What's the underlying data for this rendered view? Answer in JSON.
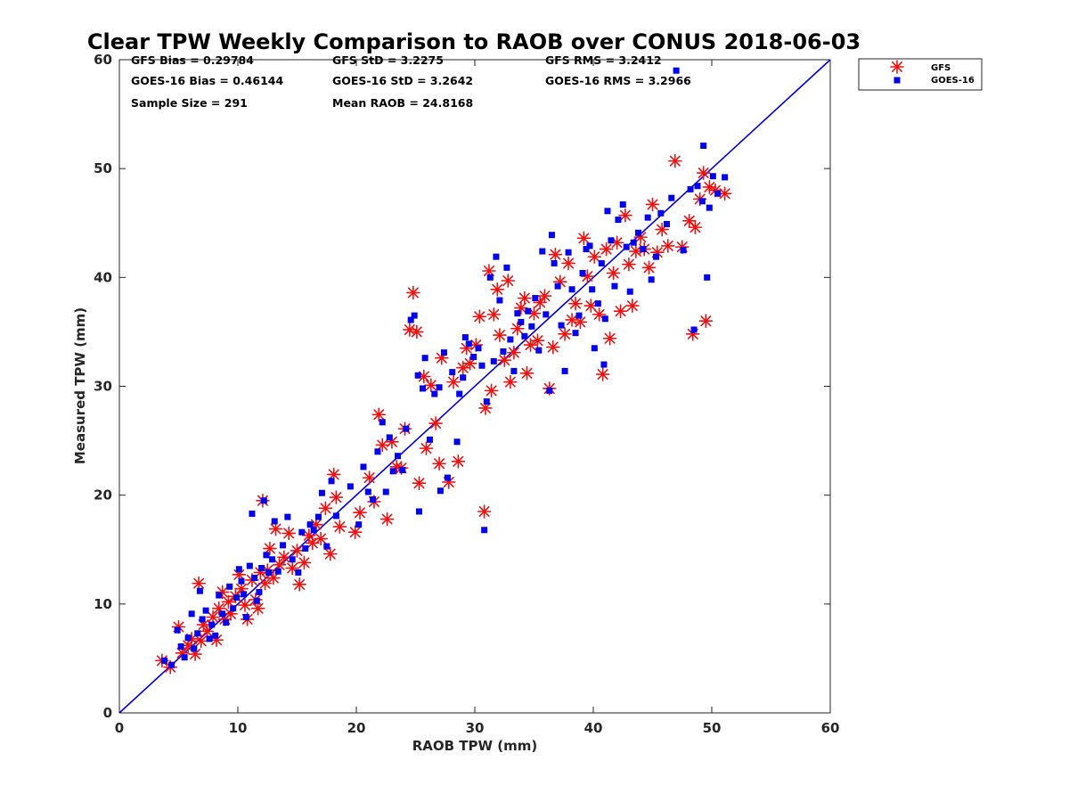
{
  "chart_data": {
    "type": "scatter",
    "title": "Clear TPW Weekly Comparison to RAOB over CONUS 2018-06-03",
    "xlabel": "RAOB TPW (mm)",
    "ylabel": "Measured TPW (mm)",
    "xlim": [
      0,
      60
    ],
    "ylim": [
      0,
      60
    ],
    "xticks": [
      "0",
      "10",
      "20",
      "30",
      "40",
      "50",
      "60"
    ],
    "yticks": [
      "0",
      "10",
      "20",
      "30",
      "40",
      "50",
      "60"
    ],
    "grid": false,
    "legend_position": "outside-top-right",
    "reference_line": {
      "name": "1:1 line",
      "color": "#0000dd",
      "from": [
        0,
        0
      ],
      "to": [
        60,
        60
      ]
    },
    "stats": [
      "GFS Bias = 0.29784",
      "GFS StD = 3.2275",
      "GFS RMS = 3.2412",
      "GOES-16 Bias = 0.46144",
      "GOES-16 StD = 3.2642",
      "GOES-16 RMS = 3.2966",
      "Sample Size = 291",
      "Mean RAOB = 24.8168"
    ],
    "series": [
      {
        "name": "GFS",
        "marker": "asterisk",
        "color": "#ee1111",
        "points": [
          [
            3.6,
            4.8
          ],
          [
            4.3,
            4.2
          ],
          [
            5.0,
            7.9
          ],
          [
            5.3,
            5.5
          ],
          [
            5.8,
            6.2
          ],
          [
            6.1,
            6.8
          ],
          [
            6.4,
            5.4
          ],
          [
            6.7,
            11.9
          ],
          [
            6.9,
            6.6
          ],
          [
            7.1,
            8.1
          ],
          [
            7.4,
            7.5
          ],
          [
            7.9,
            8.8
          ],
          [
            8.2,
            6.7
          ],
          [
            8.4,
            9.6
          ],
          [
            8.7,
            11.1
          ],
          [
            8.9,
            8.6
          ],
          [
            9.2,
            10.2
          ],
          [
            9.4,
            9.1
          ],
          [
            9.8,
            10.7
          ],
          [
            10.1,
            12.7
          ],
          [
            10.3,
            11.4
          ],
          [
            10.6,
            9.9
          ],
          [
            10.8,
            8.6
          ],
          [
            11.2,
            12.2
          ],
          [
            11.5,
            10.4
          ],
          [
            11.7,
            9.6
          ],
          [
            11.9,
            12.9
          ],
          [
            12.1,
            19.5
          ],
          [
            12.3,
            11.9
          ],
          [
            12.5,
            13.1
          ],
          [
            12.7,
            15.1
          ],
          [
            13.0,
            12.4
          ],
          [
            13.2,
            16.9
          ],
          [
            13.5,
            13.6
          ],
          [
            13.9,
            14.3
          ],
          [
            14.3,
            16.5
          ],
          [
            14.6,
            13.3
          ],
          [
            15.0,
            14.9
          ],
          [
            15.2,
            11.8
          ],
          [
            15.6,
            13.8
          ],
          [
            16.0,
            16.3
          ],
          [
            16.3,
            15.6
          ],
          [
            16.6,
            17.3
          ],
          [
            17.0,
            16.0
          ],
          [
            17.4,
            18.8
          ],
          [
            17.8,
            14.6
          ],
          [
            18.1,
            21.9
          ],
          [
            18.3,
            19.8
          ],
          [
            18.6,
            17.1
          ],
          [
            19.9,
            16.6
          ],
          [
            20.3,
            18.4
          ],
          [
            21.1,
            21.6
          ],
          [
            21.5,
            19.4
          ],
          [
            21.9,
            27.4
          ],
          [
            22.2,
            24.6
          ],
          [
            22.6,
            17.8
          ],
          [
            23.0,
            24.9
          ],
          [
            23.4,
            22.6
          ],
          [
            23.8,
            22.5
          ],
          [
            24.1,
            26.1
          ],
          [
            24.5,
            35.2
          ],
          [
            24.8,
            38.6
          ],
          [
            25.1,
            35.0
          ],
          [
            25.3,
            21.1
          ],
          [
            25.7,
            30.9
          ],
          [
            25.9,
            24.3
          ],
          [
            26.3,
            30.1
          ],
          [
            26.7,
            26.6
          ],
          [
            27.0,
            22.9
          ],
          [
            27.2,
            32.6
          ],
          [
            27.8,
            21.2
          ],
          [
            28.2,
            30.4
          ],
          [
            28.6,
            23.1
          ],
          [
            29.0,
            31.7
          ],
          [
            29.3,
            33.5
          ],
          [
            29.6,
            32.1
          ],
          [
            30.1,
            33.8
          ],
          [
            30.4,
            36.4
          ],
          [
            30.8,
            18.5
          ],
          [
            30.9,
            28.0
          ],
          [
            31.2,
            40.6
          ],
          [
            31.4,
            29.6
          ],
          [
            31.6,
            36.6
          ],
          [
            31.9,
            38.9
          ],
          [
            32.1,
            34.7
          ],
          [
            32.5,
            32.4
          ],
          [
            32.8,
            39.7
          ],
          [
            33.0,
            30.4
          ],
          [
            33.3,
            33.1
          ],
          [
            33.6,
            35.3
          ],
          [
            33.9,
            37.2
          ],
          [
            34.2,
            38.1
          ],
          [
            34.4,
            31.2
          ],
          [
            34.7,
            33.8
          ],
          [
            35.0,
            36.7
          ],
          [
            35.3,
            34.2
          ],
          [
            35.5,
            37.7
          ],
          [
            35.9,
            38.3
          ],
          [
            36.3,
            29.8
          ],
          [
            36.6,
            33.6
          ],
          [
            36.8,
            42.1
          ],
          [
            37.2,
            39.6
          ],
          [
            37.6,
            34.8
          ],
          [
            37.9,
            41.3
          ],
          [
            38.2,
            36.1
          ],
          [
            38.5,
            37.6
          ],
          [
            38.9,
            35.9
          ],
          [
            39.2,
            43.6
          ],
          [
            39.5,
            40.1
          ],
          [
            39.8,
            37.4
          ],
          [
            40.1,
            41.9
          ],
          [
            40.5,
            36.6
          ],
          [
            40.8,
            31.1
          ],
          [
            41.1,
            42.6
          ],
          [
            41.4,
            34.4
          ],
          [
            41.7,
            40.4
          ],
          [
            42.0,
            43.2
          ],
          [
            42.3,
            36.9
          ],
          [
            42.7,
            45.7
          ],
          [
            43.0,
            41.2
          ],
          [
            43.3,
            37.4
          ],
          [
            43.6,
            42.4
          ],
          [
            44.0,
            43.7
          ],
          [
            44.3,
            42.6
          ],
          [
            44.7,
            40.9
          ],
          [
            45.0,
            46.7
          ],
          [
            45.4,
            42.3
          ],
          [
            45.8,
            44.4
          ],
          [
            46.3,
            42.9
          ],
          [
            46.9,
            50.7
          ],
          [
            47.5,
            42.8
          ],
          [
            48.1,
            45.2
          ],
          [
            48.4,
            34.8
          ],
          [
            48.6,
            44.6
          ],
          [
            49.0,
            47.2
          ],
          [
            49.3,
            49.6
          ],
          [
            49.5,
            36.0
          ],
          [
            49.8,
            48.3
          ],
          [
            50.3,
            48.0
          ],
          [
            51.1,
            47.7
          ]
        ]
      },
      {
        "name": "GOES-16",
        "marker": "square",
        "color": "#0000ee",
        "points": [
          [
            3.8,
            4.8
          ],
          [
            4.4,
            4.4
          ],
          [
            4.9,
            7.6
          ],
          [
            5.2,
            6.1
          ],
          [
            5.5,
            5.1
          ],
          [
            5.8,
            6.9
          ],
          [
            6.1,
            9.1
          ],
          [
            6.3,
            5.9
          ],
          [
            6.6,
            7.3
          ],
          [
            6.8,
            11.2
          ],
          [
            7.0,
            8.6
          ],
          [
            7.3,
            9.4
          ],
          [
            7.6,
            6.8
          ],
          [
            7.8,
            8.1
          ],
          [
            8.1,
            7.1
          ],
          [
            8.4,
            10.8
          ],
          [
            8.7,
            9.1
          ],
          [
            9.0,
            8.3
          ],
          [
            9.3,
            11.6
          ],
          [
            9.6,
            9.6
          ],
          [
            9.9,
            10.6
          ],
          [
            10.1,
            13.2
          ],
          [
            10.3,
            12.1
          ],
          [
            10.5,
            10.9
          ],
          [
            10.7,
            8.8
          ],
          [
            11.0,
            13.5
          ],
          [
            11.2,
            18.3
          ],
          [
            11.4,
            12.4
          ],
          [
            11.6,
            10.3
          ],
          [
            11.8,
            11.1
          ],
          [
            12.0,
            13.3
          ],
          [
            12.2,
            19.5
          ],
          [
            12.4,
            14.5
          ],
          [
            12.6,
            12.9
          ],
          [
            12.9,
            14.1
          ],
          [
            13.1,
            17.6
          ],
          [
            13.4,
            13.0
          ],
          [
            13.8,
            15.4
          ],
          [
            14.2,
            18.0
          ],
          [
            14.6,
            14.1
          ],
          [
            15.1,
            12.9
          ],
          [
            15.4,
            16.6
          ],
          [
            15.7,
            15.1
          ],
          [
            16.1,
            17.3
          ],
          [
            16.4,
            16.8
          ],
          [
            16.8,
            18.0
          ],
          [
            17.1,
            20.2
          ],
          [
            17.5,
            15.3
          ],
          [
            17.9,
            21.3
          ],
          [
            18.3,
            18.1
          ],
          [
            19.5,
            20.8
          ],
          [
            20.2,
            17.3
          ],
          [
            20.6,
            22.6
          ],
          [
            21.0,
            20.3
          ],
          [
            21.4,
            19.6
          ],
          [
            21.8,
            24.0
          ],
          [
            22.2,
            26.7
          ],
          [
            22.5,
            20.3
          ],
          [
            22.8,
            25.3
          ],
          [
            23.1,
            22.2
          ],
          [
            23.5,
            23.6
          ],
          [
            23.9,
            22.3
          ],
          [
            24.2,
            26.1
          ],
          [
            24.6,
            36.1
          ],
          [
            24.9,
            36.5
          ],
          [
            25.2,
            31.0
          ],
          [
            25.3,
            18.5
          ],
          [
            25.6,
            29.8
          ],
          [
            25.8,
            32.6
          ],
          [
            26.2,
            25.1
          ],
          [
            26.6,
            29.3
          ],
          [
            27.0,
            29.9
          ],
          [
            27.1,
            20.4
          ],
          [
            27.4,
            33.1
          ],
          [
            27.7,
            21.6
          ],
          [
            28.1,
            31.3
          ],
          [
            28.5,
            24.9
          ],
          [
            28.7,
            29.3
          ],
          [
            29.0,
            30.8
          ],
          [
            29.2,
            34.5
          ],
          [
            29.5,
            33.9
          ],
          [
            29.9,
            32.7
          ],
          [
            30.3,
            33.5
          ],
          [
            30.6,
            31.9
          ],
          [
            30.8,
            16.8
          ],
          [
            31.0,
            28.6
          ],
          [
            31.3,
            40.0
          ],
          [
            31.6,
            32.3
          ],
          [
            31.8,
            41.9
          ],
          [
            32.1,
            37.9
          ],
          [
            32.4,
            33.2
          ],
          [
            32.7,
            40.9
          ],
          [
            33.0,
            34.3
          ],
          [
            33.3,
            31.4
          ],
          [
            33.6,
            36.7
          ],
          [
            33.9,
            35.9
          ],
          [
            34.2,
            34.6
          ],
          [
            34.5,
            36.9
          ],
          [
            34.8,
            35.5
          ],
          [
            35.1,
            38.1
          ],
          [
            35.4,
            33.3
          ],
          [
            35.7,
            42.4
          ],
          [
            36.0,
            36.6
          ],
          [
            36.3,
            29.6
          ],
          [
            36.5,
            43.9
          ],
          [
            36.7,
            41.3
          ],
          [
            37.0,
            39.2
          ],
          [
            37.3,
            35.6
          ],
          [
            37.6,
            31.4
          ],
          [
            37.9,
            42.3
          ],
          [
            38.2,
            38.9
          ],
          [
            38.5,
            34.9
          ],
          [
            38.8,
            36.5
          ],
          [
            39.1,
            40.4
          ],
          [
            39.4,
            42.6
          ],
          [
            39.7,
            42.9
          ],
          [
            39.9,
            38.9
          ],
          [
            40.1,
            33.5
          ],
          [
            40.4,
            37.6
          ],
          [
            40.7,
            41.3
          ],
          [
            40.9,
            32.0
          ],
          [
            41.2,
            46.1
          ],
          [
            41.5,
            43.4
          ],
          [
            41.8,
            39.2
          ],
          [
            42.1,
            45.3
          ],
          [
            42.5,
            46.7
          ],
          [
            42.8,
            42.8
          ],
          [
            43.1,
            38.7
          ],
          [
            43.4,
            43.2
          ],
          [
            43.8,
            44.1
          ],
          [
            44.2,
            42.6
          ],
          [
            44.6,
            45.5
          ],
          [
            44.9,
            39.8
          ],
          [
            45.3,
            41.9
          ],
          [
            45.7,
            45.9
          ],
          [
            46.2,
            44.9
          ],
          [
            46.6,
            47.3
          ],
          [
            47.0,
            59.0
          ],
          [
            47.6,
            42.5
          ],
          [
            48.2,
            48.1
          ],
          [
            48.5,
            35.2
          ],
          [
            48.8,
            48.4
          ],
          [
            49.2,
            47.0
          ],
          [
            49.3,
            52.1
          ],
          [
            49.6,
            40.0
          ],
          [
            49.8,
            46.4
          ],
          [
            50.1,
            49.3
          ],
          [
            50.5,
            47.7
          ],
          [
            51.1,
            49.2
          ],
          [
            41.0,
            36.2
          ]
        ]
      }
    ]
  }
}
